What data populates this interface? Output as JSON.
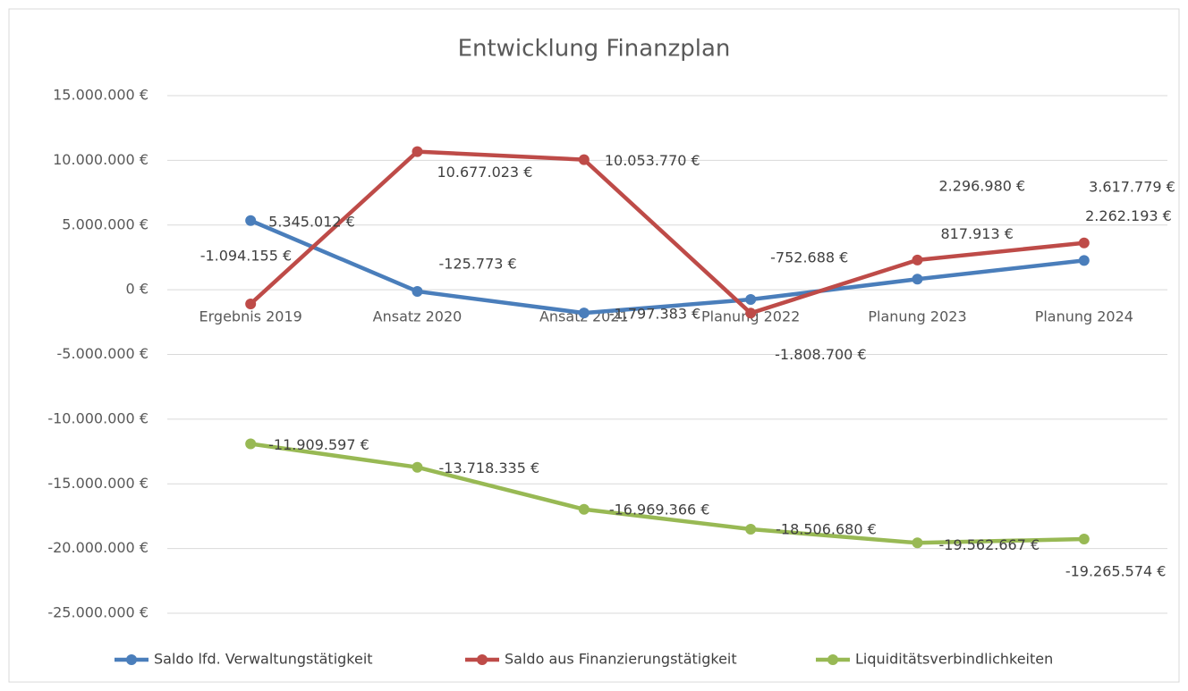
{
  "chart_data": {
    "type": "line",
    "title": "Entwicklung Finanzplan",
    "categories": [
      "Ergebnis 2019",
      "Ansatz 2020",
      "Ansatz 2021",
      "Planung 2022",
      "Planung 2023",
      "Planung 2024"
    ],
    "ylim": [
      -25000000,
      15000000
    ],
    "yticks": [
      {
        "value": -25000000,
        "label": "-25.000.000 €"
      },
      {
        "value": -20000000,
        "label": "-20.000.000 €"
      },
      {
        "value": -15000000,
        "label": "-15.000.000 €"
      },
      {
        "value": -10000000,
        "label": "-10.000.000 €"
      },
      {
        "value": -5000000,
        "label": "-5.000.000 €"
      },
      {
        "value": 0,
        "label": "0 €"
      },
      {
        "value": 5000000,
        "label": "5.000.000 €"
      },
      {
        "value": 10000000,
        "label": "10.000.000 €"
      },
      {
        "value": 15000000,
        "label": "15.000.000 €"
      }
    ],
    "grid": true,
    "legend": "bottom",
    "series": [
      {
        "name": "Saldo lfd. Verwaltungstätigkeit",
        "color": "#4a7ebb",
        "values": [
          5345012,
          -125773,
          -1797383,
          -752688,
          817913,
          2262193
        ],
        "value_labels": [
          "5.345.012 €",
          "-125.773 €",
          "-1.797.383 €",
          "-752.688 €",
          "817.913 €",
          "2.262.193 €"
        ]
      },
      {
        "name": "Saldo aus Finanzierungstätigkeit",
        "color": "#be4b48",
        "values": [
          -1094155,
          10677023,
          10053770,
          -1808700,
          2296980,
          3617779
        ],
        "value_labels": [
          "-1.094.155 €",
          "10.677.023 €",
          "10.053.770 €",
          "-1.808.700 €",
          "2.296.980 €",
          "3.617.779 €"
        ]
      },
      {
        "name": "Liquiditätsverbindlichkeiten",
        "color": "#98b954",
        "values": [
          -11909597,
          -13718335,
          -16969366,
          -18506680,
          -19562667,
          -19265574
        ],
        "value_labels": [
          "-11.909.597 €",
          "-13.718.335 €",
          "-16.969.366 €",
          "-18.506.680 €",
          "-19.562.667 €",
          "-19.265.574 €"
        ]
      }
    ]
  }
}
